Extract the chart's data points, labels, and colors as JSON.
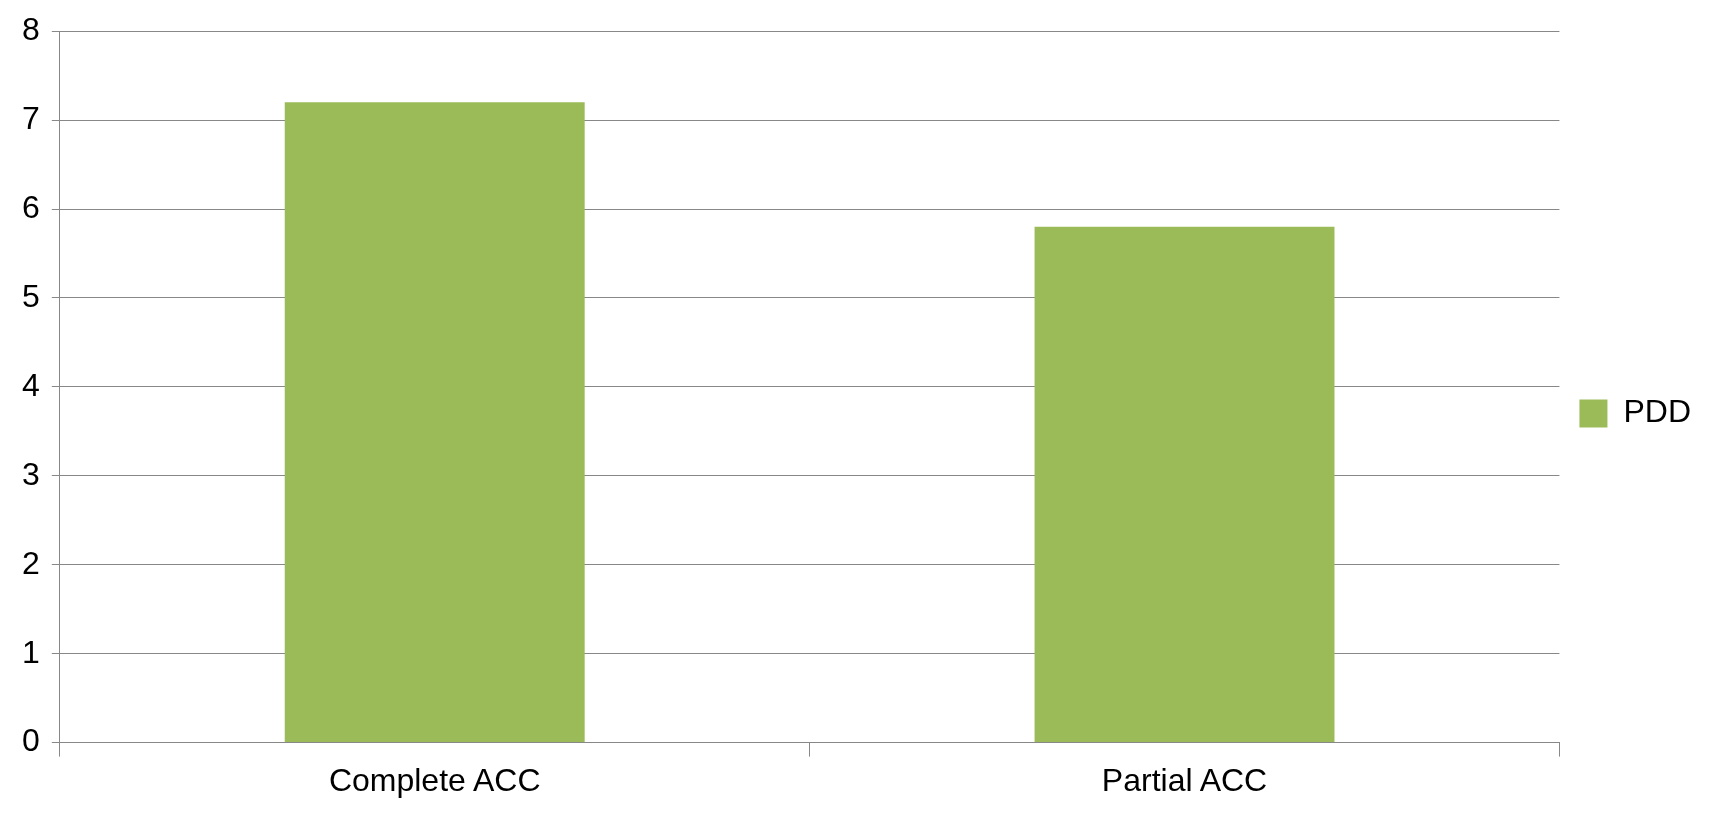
{
  "chart_data": {
    "type": "bar",
    "categories": [
      "Complete ACC",
      "Partial ACC"
    ],
    "series": [
      {
        "name": "PDD",
        "color": "#9bbb59",
        "values": [
          7.2,
          5.8
        ]
      }
    ],
    "ylim": [
      0,
      8
    ],
    "yticks": [
      0,
      1,
      2,
      3,
      4,
      5,
      6,
      7,
      8
    ],
    "grid": "y",
    "legend": "right"
  }
}
